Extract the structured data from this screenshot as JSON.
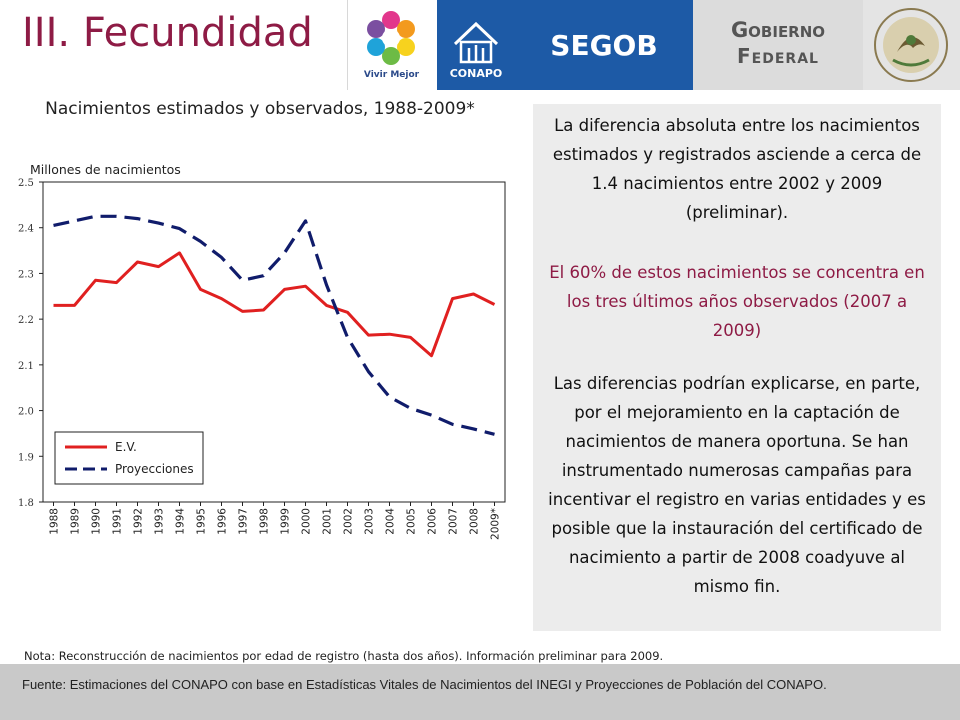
{
  "header": {
    "slide_title": "III. Fecundidad",
    "logos": {
      "vivir_mejor": "Vivir Mejor",
      "conapo": "CONAPO",
      "segob": "SEGOB",
      "gobierno_line1": "Gobierno",
      "gobierno_line2": "Federal"
    },
    "colors": {
      "title": "#8e1b45",
      "brand_blue": "#1d5aa6"
    }
  },
  "chart_data": {
    "type": "line",
    "title": "Nacimientos estimados y observados, 1988-2009*",
    "ylabel": "Millones de nacimientos",
    "xlabel": "",
    "categories": [
      "1988",
      "1989",
      "1990",
      "1991",
      "1992",
      "1993",
      "1994",
      "1995",
      "1996",
      "1997",
      "1998",
      "1999",
      "2000",
      "2001",
      "2002",
      "2003",
      "2004",
      "2005",
      "2006",
      "2007",
      "2008",
      "2009*"
    ],
    "yticks": [
      "2.5",
      "2.4",
      "2.3",
      "2.2",
      "2.1",
      "2.0",
      "1.9",
      "1.8"
    ],
    "ylim": [
      1.8,
      2.5
    ],
    "grid": false,
    "legend": "bottom-left inside",
    "series": [
      {
        "name": "E.V.",
        "color": "#e02020",
        "style": "solid",
        "values": [
          2.23,
          2.23,
          2.285,
          2.28,
          2.325,
          2.315,
          2.345,
          2.265,
          2.245,
          2.217,
          2.22,
          2.265,
          2.272,
          2.23,
          2.215,
          2.165,
          2.167,
          2.16,
          2.12,
          2.245,
          2.255,
          2.232
        ]
      },
      {
        "name": "Proyecciones",
        "color": "#101c6b",
        "style": "dashed",
        "values": [
          2.405,
          2.415,
          2.425,
          2.425,
          2.42,
          2.41,
          2.398,
          2.37,
          2.335,
          2.285,
          2.295,
          2.345,
          2.415,
          2.275,
          2.16,
          2.085,
          2.03,
          2.005,
          1.99,
          1.97,
          1.96,
          1.948
        ]
      }
    ]
  },
  "textbox": {
    "p1": "La diferencia absoluta entre los nacimientos estimados y registrados asciende a cerca de 1.4 nacimientos entre 2002 y 2009 (preliminar).",
    "p2": "El 60% de estos nacimientos se concentra en los tres últimos años observados (2007 a 2009)",
    "p3": "Las diferencias podrían explicarse, en parte, por el mejoramiento en la captación de nacimientos de manera oportuna. Se han instrumentado numerosas campañas para incentivar el registro en varias entidades y es posible que la instauración del certificado de nacimiento a partir de 2008 coadyuve al mismo fin.",
    "highlight_color": "#8e1b45"
  },
  "note": "Nota: Reconstrucción de nacimientos por edad de registro (hasta dos años). Información preliminar para 2009.",
  "footer": "Fuente: Estimaciones del CONAPO con base en Estadísticas Vitales de Nacimientos del INEGI y Proyecciones de Población del CONAPO."
}
